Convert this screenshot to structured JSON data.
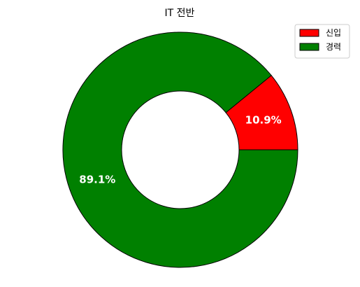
{
  "chart_data": {
    "type": "pie",
    "title": "IT 전반",
    "donut": true,
    "start_angle_deg": 0,
    "direction": "counterclockwise",
    "legend_position": "top-right",
    "slices": [
      {
        "label": "신입",
        "value": 10.9,
        "pct_label": "10.9%",
        "color": "#ff0000"
      },
      {
        "label": "경력",
        "value": 89.1,
        "pct_label": "89.1%",
        "color": "#008000"
      }
    ]
  }
}
